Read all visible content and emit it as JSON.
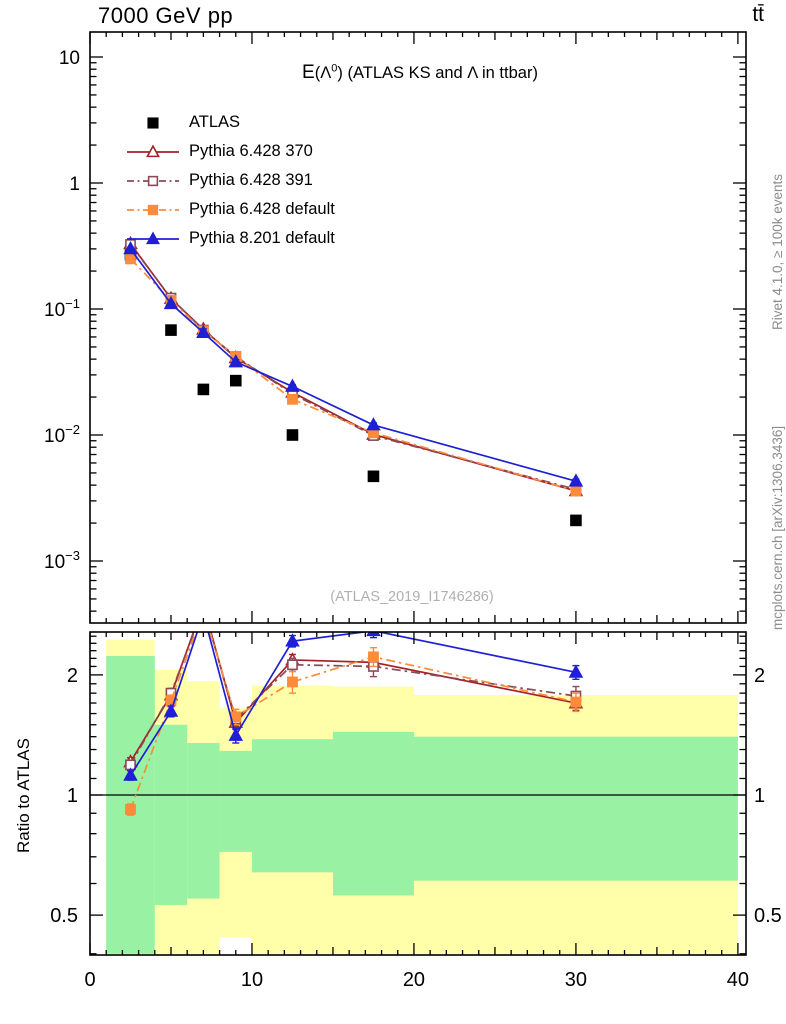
{
  "page": {
    "top_left_title": "7000 GeV pp",
    "top_right_title": "tt̄",
    "plot_title": {
      "e": "E",
      "open": "(Λ",
      "sup": "0",
      "rest": ") (ATLAS KS and Λ in ttbar)"
    },
    "watermark": "(ATLAS_2019_I1746286)",
    "side_note_top": "Rivet 4.1.0, ≥ 100k events",
    "side_note_bottom": "mcplots.cern.ch [arXiv:1306.3436]",
    "ratio_ylabel": "Ratio to ATLAS"
  },
  "chart_data": {
    "type": "line",
    "title": "E(Λ0) (ATLAS KS and Λ in ttbar)",
    "x_axis": {
      "min": 0,
      "max": 40.5,
      "major_ticks": [
        0,
        10,
        20,
        30,
        40
      ],
      "medium_step": 5,
      "minor_step": 1
    },
    "main_axis": {
      "scale": "log",
      "ymin": 0.00032,
      "ymax": 15.7,
      "tick_values": [
        10,
        1,
        0.1,
        0.01,
        0.001
      ],
      "tick_labels": [
        {
          "b": "10",
          "e": ""
        },
        {
          "b": "1",
          "e": ""
        },
        {
          "b": "10",
          "e": "−1"
        },
        {
          "b": "10",
          "e": "−2"
        },
        {
          "b": "10",
          "e": "−3"
        }
      ]
    },
    "ratio_axis": {
      "scale": "log",
      "ymin": 0.397,
      "ymax": 2.56,
      "tick_values": [
        2,
        1,
        0.5
      ],
      "tick_labels": [
        "2",
        "1",
        "0.5"
      ],
      "reference_line": 1
    },
    "bin_edges": [
      1,
      4,
      6,
      8,
      10,
      15,
      20,
      40
    ],
    "bin_centers": [
      2.5,
      5,
      7,
      9,
      12.5,
      17.5,
      30
    ],
    "bands": {
      "yellow_color": "#ffffaa",
      "green_color": "#99f2a3",
      "yellow": [
        [
          0.4,
          2.45
        ],
        [
          0.4,
          2.06
        ],
        [
          0.4,
          1.93
        ],
        [
          0.44,
          1.65
        ],
        [
          0.4,
          1.88
        ],
        [
          0.4,
          1.87
        ],
        [
          0.4,
          1.78
        ]
      ],
      "green": [
        [
          0.4,
          2.23
        ],
        [
          0.53,
          1.5
        ],
        [
          0.55,
          1.35
        ],
        [
          0.72,
          1.29
        ],
        [
          0.64,
          1.38
        ],
        [
          0.56,
          1.44
        ],
        [
          0.61,
          1.4
        ]
      ]
    },
    "series": [
      {
        "name": "ATLAS",
        "color": "#000000",
        "marker": "square",
        "fill": "solid",
        "line": "none",
        "values": [
          0.27,
          0.068,
          0.023,
          0.027,
          0.01,
          0.0047,
          0.0021
        ]
      },
      {
        "name": "Pythia 6.428 370",
        "color": "#a32228",
        "marker": "triangle",
        "fill": "open",
        "line": "solid",
        "values": [
          0.33,
          0.121,
          0.069,
          0.041,
          0.0218,
          0.0101,
          0.0036
        ],
        "ratio": [
          1.21,
          1.78,
          3.0,
          1.52,
          2.18,
          2.15,
          1.7
        ],
        "ratio_err": [
          0.03,
          0.05,
          0.2,
          0.06,
          0.07,
          0.09,
          0.07
        ]
      },
      {
        "name": "Pythia 6.428 391",
        "color": "#8b4956",
        "marker": "square",
        "fill": "open",
        "line": "dashdot",
        "values": [
          0.325,
          0.122,
          0.068,
          0.042,
          0.0212,
          0.0099,
          0.0037
        ],
        "ratio": [
          1.19,
          1.8,
          2.95,
          1.55,
          2.12,
          2.1,
          1.77
        ],
        "ratio_err": [
          0.03,
          0.05,
          0.2,
          0.06,
          0.08,
          0.12,
          0.1
        ]
      },
      {
        "name": "Pythia 6.428 default",
        "color": "#fd8b3a",
        "marker": "square",
        "fill": "solid",
        "line": "dashdot",
        "values": [
          0.25,
          0.117,
          0.067,
          0.042,
          0.0192,
          0.0104,
          0.0036
        ],
        "ratio": [
          0.92,
          1.72,
          2.9,
          1.57,
          1.92,
          2.22,
          1.71
        ],
        "ratio_err": [
          0.03,
          0.06,
          0.2,
          0.07,
          0.12,
          0.12,
          0.09
        ]
      },
      {
        "name": "Pythia 8.201 default",
        "color": "#1f1fd6",
        "marker": "triangle",
        "fill": "solid",
        "line": "solid",
        "values": [
          0.3,
          0.11,
          0.065,
          0.038,
          0.0243,
          0.012,
          0.0043
        ],
        "ratio": [
          1.12,
          1.62,
          2.85,
          1.41,
          2.43,
          2.58,
          2.03
        ],
        "ratio_err": [
          0.03,
          0.05,
          0.2,
          0.06,
          0.08,
          0.1,
          0.08
        ]
      }
    ]
  }
}
